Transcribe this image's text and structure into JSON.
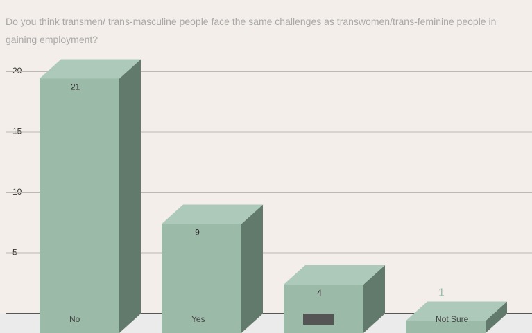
{
  "chart_data": {
    "type": "bar3d",
    "title": "Do you think transmen/ trans-masculine people face the same challenges as transwomen/trans-feminine people in gaining employment?",
    "categories": [
      "No",
      "Yes",
      null,
      "Not Sure"
    ],
    "values": [
      21,
      9,
      4,
      1
    ],
    "color": "#9bbaa8",
    "ylim": [
      0,
      22
    ],
    "yticks": [
      5,
      10,
      15,
      20
    ],
    "grid": true
  }
}
